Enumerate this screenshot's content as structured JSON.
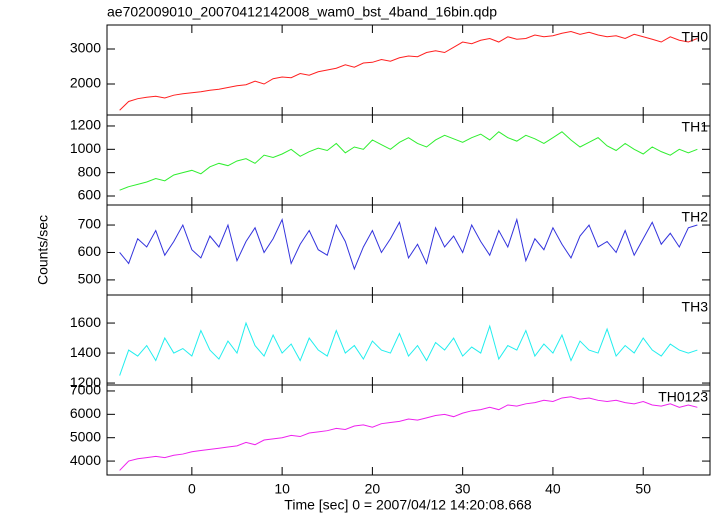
{
  "chart_data": [
    {
      "type": "line",
      "title": "ae702009010_20070412142008_wam0_bst_4band_16bin.qdp",
      "x": [
        -8,
        -7,
        -6,
        -5,
        -4,
        -3,
        -2,
        -1,
        0,
        1,
        2,
        3,
        4,
        5,
        6,
        7,
        8,
        9,
        10,
        11,
        12,
        13,
        14,
        15,
        16,
        17,
        18,
        19,
        20,
        21,
        22,
        23,
        24,
        25,
        26,
        27,
        28,
        29,
        30,
        31,
        32,
        33,
        34,
        35,
        36,
        37,
        38,
        39,
        40,
        41,
        42,
        43,
        44,
        45,
        46,
        47,
        48,
        49,
        50,
        51,
        52,
        53,
        54,
        55,
        56
      ],
      "series": [
        {
          "name": "TH0",
          "color": "#ff2020",
          "values": [
            1250,
            1500,
            1580,
            1620,
            1650,
            1600,
            1680,
            1720,
            1750,
            1780,
            1820,
            1850,
            1900,
            1950,
            1980,
            2080,
            2000,
            2150,
            2200,
            2180,
            2300,
            2250,
            2350,
            2400,
            2450,
            2550,
            2480,
            2600,
            2620,
            2700,
            2650,
            2750,
            2800,
            2780,
            2900,
            2950,
            2900,
            3050,
            3200,
            3150,
            3250,
            3300,
            3200,
            3350,
            3280,
            3300,
            3400,
            3350,
            3380,
            3450,
            3500,
            3420,
            3480,
            3400,
            3350,
            3380,
            3300,
            3420,
            3350,
            3280,
            3200,
            3350,
            3250,
            3200,
            3300
          ]
        }
      ],
      "xlim": [
        -9.4,
        57.4
      ],
      "ylim": [
        1114,
        3686
      ],
      "yticks": [
        2000,
        3000
      ]
    },
    {
      "type": "line",
      "x": [
        -8,
        -7,
        -6,
        -5,
        -4,
        -3,
        -2,
        -1,
        0,
        1,
        2,
        3,
        4,
        5,
        6,
        7,
        8,
        9,
        10,
        11,
        12,
        13,
        14,
        15,
        16,
        17,
        18,
        19,
        20,
        21,
        22,
        23,
        24,
        25,
        26,
        27,
        28,
        29,
        30,
        31,
        32,
        33,
        34,
        35,
        36,
        37,
        38,
        39,
        40,
        41,
        42,
        43,
        44,
        45,
        46,
        47,
        48,
        49,
        50,
        51,
        52,
        53,
        54,
        55,
        56
      ],
      "series": [
        {
          "name": "TH1",
          "color": "#30ee30",
          "values": [
            650,
            680,
            700,
            720,
            750,
            730,
            780,
            800,
            820,
            790,
            850,
            880,
            860,
            900,
            920,
            880,
            950,
            930,
            960,
            1000,
            940,
            980,
            1010,
            990,
            1050,
            970,
            1020,
            1000,
            1080,
            1040,
            1000,
            1060,
            1100,
            1050,
            1020,
            1080,
            1120,
            1090,
            1060,
            1100,
            1130,
            1080,
            1150,
            1100,
            1070,
            1120,
            1090,
            1050,
            1100,
            1150,
            1080,
            1020,
            1060,
            1100,
            1030,
            990,
            1050,
            1000,
            960,
            1020,
            980,
            950,
            1000,
            970,
            1000
          ]
        }
      ],
      "xlim": [
        -9.4,
        57.4
      ],
      "ylim": [
        523,
        1294
      ],
      "yticks": [
        600,
        800,
        1000,
        1200
      ]
    },
    {
      "type": "line",
      "y_label": "Counts/sec",
      "x": [
        -8,
        -7,
        -6,
        -5,
        -4,
        -3,
        -2,
        -1,
        0,
        1,
        2,
        3,
        4,
        5,
        6,
        7,
        8,
        9,
        10,
        11,
        12,
        13,
        14,
        15,
        16,
        17,
        18,
        19,
        20,
        21,
        22,
        23,
        24,
        25,
        26,
        27,
        28,
        29,
        30,
        31,
        32,
        33,
        34,
        35,
        36,
        37,
        38,
        39,
        40,
        41,
        42,
        43,
        44,
        45,
        46,
        47,
        48,
        49,
        50,
        51,
        52,
        53,
        54,
        55,
        56
      ],
      "series": [
        {
          "name": "TH2",
          "color": "#3434dd",
          "values": [
            600,
            560,
            650,
            620,
            680,
            590,
            640,
            700,
            610,
            580,
            660,
            620,
            700,
            570,
            640,
            690,
            600,
            650,
            720,
            560,
            630,
            680,
            610,
            590,
            700,
            640,
            540,
            620,
            680,
            600,
            650,
            710,
            580,
            630,
            560,
            690,
            620,
            660,
            600,
            700,
            640,
            590,
            680,
            620,
            720,
            570,
            650,
            610,
            690,
            630,
            580,
            660,
            700,
            620,
            640,
            600,
            680,
            590,
            650,
            710,
            630,
            670,
            620,
            690,
            700
          ]
        }
      ],
      "xlim": [
        -9.4,
        57.4
      ],
      "ylim": [
        445,
        773
      ],
      "yticks": [
        500,
        600,
        700
      ]
    },
    {
      "type": "line",
      "x": [
        -8,
        -7,
        -6,
        -5,
        -4,
        -3,
        -2,
        -1,
        0,
        1,
        2,
        3,
        4,
        5,
        6,
        7,
        8,
        9,
        10,
        11,
        12,
        13,
        14,
        15,
        16,
        17,
        18,
        19,
        20,
        21,
        22,
        23,
        24,
        25,
        26,
        27,
        28,
        29,
        30,
        31,
        32,
        33,
        34,
        35,
        36,
        37,
        38,
        39,
        40,
        41,
        42,
        43,
        44,
        45,
        46,
        47,
        48,
        49,
        50,
        51,
        52,
        53,
        54,
        55,
        56
      ],
      "series": [
        {
          "name": "TH3",
          "color": "#22eeee",
          "values": [
            1250,
            1420,
            1380,
            1450,
            1350,
            1500,
            1400,
            1430,
            1380,
            1550,
            1420,
            1360,
            1480,
            1400,
            1600,
            1450,
            1380,
            1520,
            1400,
            1460,
            1350,
            1500,
            1420,
            1380,
            1550,
            1400,
            1450,
            1360,
            1480,
            1420,
            1400,
            1530,
            1380,
            1450,
            1350,
            1470,
            1420,
            1500,
            1380,
            1440,
            1400,
            1580,
            1360,
            1450,
            1420,
            1550,
            1380,
            1460,
            1400,
            1520,
            1350,
            1480,
            1420,
            1400,
            1560,
            1380,
            1450,
            1400,
            1500,
            1420,
            1380,
            1460,
            1420,
            1400,
            1420
          ]
        }
      ],
      "xlim": [
        -9.4,
        57.4
      ],
      "ylim": [
        1187,
        1787
      ],
      "yticks": [
        1200,
        1400,
        1600
      ]
    },
    {
      "type": "line",
      "x_label": "Time [sec] 0 = 2007/04/12 14:20:08.668",
      "x": [
        -8,
        -7,
        -6,
        -5,
        -4,
        -3,
        -2,
        -1,
        0,
        1,
        2,
        3,
        4,
        5,
        6,
        7,
        8,
        9,
        10,
        11,
        12,
        13,
        14,
        15,
        16,
        17,
        18,
        19,
        20,
        21,
        22,
        23,
        24,
        25,
        26,
        27,
        28,
        29,
        30,
        31,
        32,
        33,
        34,
        35,
        36,
        37,
        38,
        39,
        40,
        41,
        42,
        43,
        44,
        45,
        46,
        47,
        48,
        49,
        50,
        51,
        52,
        53,
        54,
        55,
        56
      ],
      "series": [
        {
          "name": "TH0123",
          "color": "#ee22ee",
          "values": [
            3600,
            4000,
            4100,
            4150,
            4200,
            4150,
            4250,
            4300,
            4400,
            4450,
            4500,
            4550,
            4600,
            4650,
            4800,
            4700,
            4900,
            4950,
            5000,
            5100,
            5050,
            5200,
            5250,
            5300,
            5400,
            5350,
            5500,
            5550,
            5450,
            5600,
            5650,
            5700,
            5800,
            5750,
            5850,
            5950,
            6000,
            5900,
            6050,
            6150,
            6200,
            6300,
            6200,
            6400,
            6350,
            6450,
            6500,
            6600,
            6550,
            6700,
            6750,
            6650,
            6700,
            6600,
            6550,
            6600,
            6500,
            6450,
            6550,
            6400,
            6350,
            6450,
            6300,
            6400,
            6300
          ]
        }
      ],
      "xlim": [
        -9.4,
        57.4
      ],
      "ylim": [
        3404,
        7255
      ],
      "yticks": [
        4000,
        5000,
        6000,
        7000
      ],
      "xticks": [
        0,
        10,
        20,
        30,
        40,
        50
      ]
    }
  ]
}
